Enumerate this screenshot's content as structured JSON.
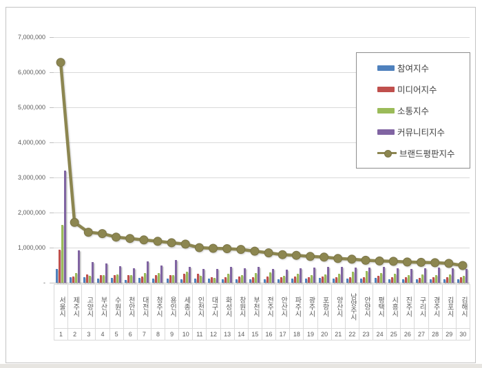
{
  "chart_data": {
    "type": "bar",
    "subtype": "grouped-bars-with-line-overlay",
    "title": "",
    "categories": [
      "서울시",
      "제주시",
      "고양시",
      "부산시",
      "수원시",
      "천안시",
      "대전시",
      "청주시",
      "용인시",
      "세종시",
      "인천시",
      "대구시",
      "화성시",
      "창원시",
      "부천시",
      "전주시",
      "안산시",
      "파주시",
      "광주시",
      "포항시",
      "양산시",
      "남양주시",
      "안양시",
      "평택시",
      "시흥시",
      "진주시",
      "구리시",
      "경주시",
      "김포시",
      "김해시"
    ],
    "ranks": [
      "1",
      "2",
      "3",
      "4",
      "5",
      "6",
      "7",
      "8",
      "9",
      "10",
      "11",
      "12",
      "13",
      "14",
      "15",
      "16",
      "17",
      "18",
      "19",
      "20",
      "21",
      "22",
      "23",
      "24",
      "25",
      "26",
      "27",
      "28",
      "29",
      "30"
    ],
    "series": [
      {
        "name": "참여지수",
        "type": "bar",
        "color": "#4f81bd",
        "values": [
          400000,
          150000,
          160000,
          120000,
          140000,
          80000,
          140000,
          120000,
          120000,
          100000,
          120000,
          120000,
          100000,
          100000,
          100000,
          100000,
          100000,
          120000,
          120000,
          130000,
          110000,
          110000,
          120000,
          130000,
          100000,
          100000,
          100000,
          100000,
          100000,
          100000
        ]
      },
      {
        "name": "미디어지수",
        "type": "bar",
        "color": "#c0504d",
        "values": [
          950000,
          180000,
          240000,
          220000,
          210000,
          220000,
          180000,
          210000,
          210000,
          250000,
          250000,
          160000,
          150000,
          180000,
          150000,
          180000,
          150000,
          180000,
          150000,
          180000,
          150000,
          150000,
          160000,
          200000,
          150000,
          160000,
          140000,
          150000,
          160000,
          150000
        ]
      },
      {
        "name": "소통지수",
        "type": "bar",
        "color": "#9bbb59",
        "values": [
          1650000,
          280000,
          200000,
          210000,
          230000,
          210000,
          270000,
          280000,
          210000,
          310000,
          200000,
          140000,
          250000,
          220000,
          280000,
          300000,
          200000,
          250000,
          220000,
          240000,
          260000,
          310000,
          340000,
          280000,
          250000,
          220000,
          240000,
          220000,
          240000,
          200000
        ]
      },
      {
        "name": "커뮤니티지수",
        "type": "bar",
        "color": "#8064a2",
        "values": [
          3200000,
          920000,
          580000,
          550000,
          480000,
          420000,
          610000,
          500000,
          650000,
          450000,
          400000,
          400000,
          450000,
          420000,
          450000,
          400000,
          380000,
          420000,
          440000,
          460000,
          460000,
          430000,
          430000,
          450000,
          410000,
          390000,
          410000,
          430000,
          420000,
          400000
        ]
      },
      {
        "name": "브랜드평판지수",
        "type": "line",
        "color": "#8c8650",
        "values": [
          6280000,
          1720000,
          1440000,
          1400000,
          1300000,
          1260000,
          1220000,
          1180000,
          1140000,
          1100000,
          1000000,
          980000,
          970000,
          950000,
          900000,
          850000,
          800000,
          780000,
          750000,
          730000,
          690000,
          670000,
          640000,
          620000,
          610000,
          590000,
          580000,
          570000,
          550000,
          490000
        ]
      }
    ],
    "y_axis": {
      "min": 0,
      "max": 7000000,
      "tick_interval": 1000000,
      "ticks": [
        {
          "label": "7,000,000",
          "value": 7000000
        },
        {
          "label": "6,000,000",
          "value": 6000000
        },
        {
          "label": "5,000,000",
          "value": 5000000
        },
        {
          "label": "4,000,000",
          "value": 4000000
        },
        {
          "label": "3,000,000",
          "value": 3000000
        },
        {
          "label": "2,000,000",
          "value": 2000000
        },
        {
          "label": "1,000,000",
          "value": 1000000
        },
        {
          "label": "-",
          "value": 0
        }
      ]
    },
    "legend": {
      "position": "top-right"
    },
    "grid": true
  }
}
